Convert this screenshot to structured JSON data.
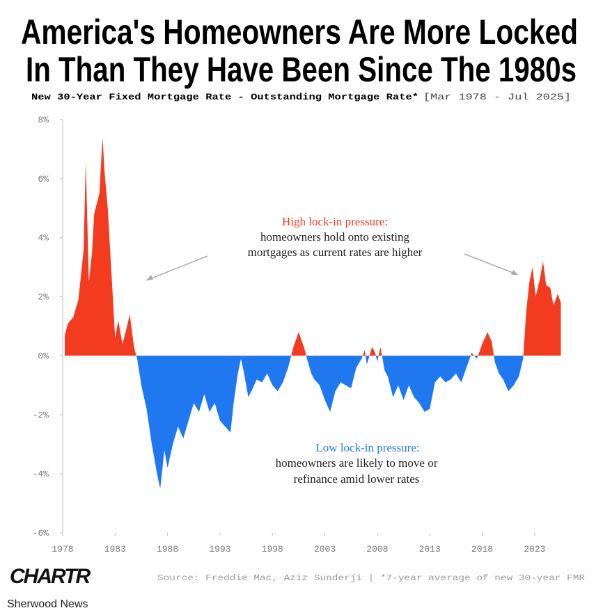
{
  "chart_data": {
    "type": "area",
    "title": [
      "America's Homeowners Are More Locked",
      "In Than They Have Been Since The 1980s"
    ],
    "subtitle": "New 30-Year Fixed Mortgage Rate - Outstanding Mortgage Rate*",
    "date_range": "[Mar 1978 - Jul 2025]",
    "x": [
      1978.2,
      1978.5,
      1979,
      1979.5,
      1980,
      1980.2,
      1980.5,
      1980.8,
      1981,
      1981.5,
      1981.8,
      1982,
      1982.3,
      1982.7,
      1983,
      1983.3,
      1983.7,
      1984,
      1984.4,
      1984.8,
      1985.1,
      1985.5,
      1986,
      1986.5,
      1987,
      1987.3,
      1987.7,
      1988,
      1988.5,
      1989,
      1989.5,
      1990,
      1990.5,
      1991,
      1991.5,
      1992,
      1992.5,
      1993,
      1993.5,
      1994,
      1994.3,
      1994.7,
      1995,
      1995.3,
      1995.7,
      1996,
      1996.5,
      1997,
      1997.5,
      1998,
      1998.5,
      1999,
      1999.5,
      2000,
      2000.5,
      2001,
      2001.3,
      2001.7,
      2002,
      2002.5,
      2003,
      2003.5,
      2004,
      2004.5,
      2005,
      2005.5,
      2006,
      2006.5,
      2006.8,
      2007,
      2007.5,
      2007.8,
      2008,
      2008.3,
      2008.7,
      2009,
      2009.5,
      2010,
      2010.5,
      2011,
      2011.5,
      2012,
      2012.5,
      2013,
      2013.5,
      2014,
      2014.5,
      2015,
      2015.5,
      2016,
      2016.5,
      2017,
      2017.5,
      2018,
      2018.5,
      2018.9,
      2019.2,
      2019.6,
      2020,
      2020.5,
      2021,
      2021.5,
      2021.9,
      2022.2,
      2022.5,
      2022.8,
      2023.1,
      2023.5,
      2023.8,
      2024.1,
      2024.5,
      2024.8,
      2025.2,
      2025.5
    ],
    "values": [
      0.7,
      1.1,
      1.3,
      1.9,
      3.6,
      6.6,
      2.5,
      3.5,
      4.8,
      5.5,
      7.4,
      6.2,
      5.0,
      2.5,
      0.6,
      1.2,
      0.4,
      0.8,
      1.4,
      0.3,
      -0.1,
      -1.0,
      -1.8,
      -3.0,
      -4.0,
      -4.5,
      -3.2,
      -3.8,
      -3.0,
      -2.4,
      -2.8,
      -2.2,
      -1.6,
      -1.9,
      -1.3,
      -1.9,
      -1.6,
      -2.2,
      -2.4,
      -2.6,
      -1.6,
      -0.6,
      -0.1,
      -0.6,
      -1.4,
      -1.2,
      -0.8,
      -0.9,
      -0.6,
      -1.0,
      -1.2,
      -0.9,
      -0.4,
      0.3,
      0.8,
      0.3,
      -0.1,
      -0.6,
      -0.8,
      -1.0,
      -1.5,
      -1.9,
      -1.2,
      -0.9,
      -1.0,
      -1.1,
      -0.4,
      -0.1,
      0.2,
      -0.3,
      0.3,
      0.1,
      -0.2,
      0.3,
      -0.5,
      -0.7,
      -1.4,
      -1.0,
      -1.5,
      -1.0,
      -1.4,
      -1.6,
      -1.9,
      -1.8,
      -0.9,
      -0.7,
      -0.9,
      -0.8,
      -0.6,
      -0.9,
      -0.4,
      0.1,
      -0.1,
      0.4,
      0.8,
      0.5,
      -0.2,
      -0.6,
      -0.8,
      -1.2,
      -1.0,
      -0.7,
      -0.1,
      1.5,
      2.5,
      3.0,
      2.0,
      2.6,
      3.2,
      2.4,
      2.3,
      1.7,
      2.1,
      1.8
    ],
    "positive_color": "#f23b1f",
    "negative_color": "#1f78f0",
    "xlim": [
      1978,
      2026
    ],
    "xticks": [
      1978,
      1983,
      1988,
      1993,
      1998,
      2003,
      2008,
      2013,
      2018,
      2023
    ],
    "ylim": [
      -6,
      8
    ],
    "yticks": [
      {
        "value": -6,
        "label": "-6%"
      },
      {
        "value": -4,
        "label": "-4%"
      },
      {
        "value": -2,
        "label": "-2%"
      },
      {
        "value": 0,
        "label": "0%"
      },
      {
        "value": 2,
        "label": "2%"
      },
      {
        "value": 4,
        "label": "4%"
      },
      {
        "value": 6,
        "label": "6%"
      },
      {
        "value": 8,
        "label": "8%"
      }
    ],
    "annotations": [
      {
        "heading": "High lock-in pressure:",
        "lines": [
          "homeowners hold onto existing",
          "mortgages as current rates are higher"
        ]
      },
      {
        "heading": "Low lock-in pressure:",
        "lines": [
          "homeowners are likely to move or",
          "refinance amid lower rates"
        ]
      }
    ],
    "logo": "CHARTR",
    "source": "Source: Freddie Mac, Aziz Sunderji | *7-year average of new 30-year FMR",
    "footer": "Sherwood News"
  }
}
